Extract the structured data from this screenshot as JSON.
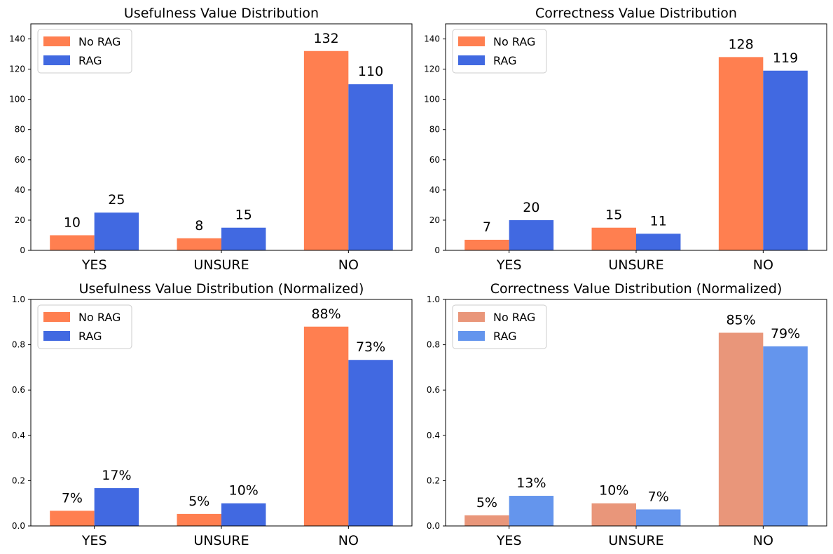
{
  "chart_data": [
    {
      "type": "bar",
      "title": "Usefulness Value Distribution",
      "categories": [
        "YES",
        "UNSURE",
        "NO"
      ],
      "series": [
        {
          "name": "No RAG",
          "values": [
            10,
            8,
            132
          ],
          "color": "#ff7f50"
        },
        {
          "name": "RAG",
          "values": [
            25,
            15,
            110
          ],
          "color": "#4169e1"
        }
      ],
      "data_labels": [
        [
          "10",
          "8",
          "132"
        ],
        [
          "25",
          "15",
          "110"
        ]
      ],
      "ylim": [
        0,
        150
      ],
      "yticks": [
        0,
        20,
        40,
        60,
        80,
        100,
        120,
        140
      ],
      "ytick_labels": [
        "0",
        "20",
        "40",
        "60",
        "80",
        "100",
        "120",
        "140"
      ],
      "xlabel": "",
      "ylabel": "",
      "grid": false,
      "legend": "top-left"
    },
    {
      "type": "bar",
      "title": "Correctness Value Distribution",
      "categories": [
        "YES",
        "UNSURE",
        "NO"
      ],
      "series": [
        {
          "name": "No RAG",
          "values": [
            7,
            15,
            128
          ],
          "color": "#ff7f50"
        },
        {
          "name": "RAG",
          "values": [
            20,
            11,
            119
          ],
          "color": "#4169e1"
        }
      ],
      "data_labels": [
        [
          "7",
          "15",
          "128"
        ],
        [
          "20",
          "11",
          "119"
        ]
      ],
      "ylim": [
        0,
        150
      ],
      "yticks": [
        0,
        20,
        40,
        60,
        80,
        100,
        120,
        140
      ],
      "ytick_labels": [
        "0",
        "20",
        "40",
        "60",
        "80",
        "100",
        "120",
        "140"
      ],
      "xlabel": "",
      "ylabel": "",
      "grid": false,
      "legend": "top-left"
    },
    {
      "type": "bar",
      "title": "Usefulness Value Distribution (Normalized)",
      "categories": [
        "YES",
        "UNSURE",
        "NO"
      ],
      "series": [
        {
          "name": "No RAG",
          "values": [
            0.067,
            0.053,
            0.88
          ],
          "color": "#ff7f50"
        },
        {
          "name": "RAG",
          "values": [
            0.167,
            0.1,
            0.733
          ],
          "color": "#4169e1"
        }
      ],
      "data_labels": [
        [
          "7%",
          "5%",
          "88%"
        ],
        [
          "17%",
          "10%",
          "73%"
        ]
      ],
      "ylim": [
        0,
        1.0
      ],
      "yticks": [
        0,
        0.2,
        0.4,
        0.6,
        0.8,
        1.0
      ],
      "ytick_labels": [
        "0.0",
        "0.2",
        "0.4",
        "0.6",
        "0.8",
        "1.0"
      ],
      "xlabel": "",
      "ylabel": "",
      "grid": false,
      "legend": "top-left"
    },
    {
      "type": "bar",
      "title": "Correctness Value Distribution (Normalized)",
      "categories": [
        "YES",
        "UNSURE",
        "NO"
      ],
      "series": [
        {
          "name": "No RAG",
          "values": [
            0.047,
            0.1,
            0.853
          ],
          "color": "#e9967a"
        },
        {
          "name": "RAG",
          "values": [
            0.133,
            0.073,
            0.793
          ],
          "color": "#6495ed"
        }
      ],
      "data_labels": [
        [
          "5%",
          "10%",
          "85%"
        ],
        [
          "13%",
          "7%",
          "79%"
        ]
      ],
      "ylim": [
        0,
        1.0
      ],
      "yticks": [
        0,
        0.2,
        0.4,
        0.6,
        0.8,
        1.0
      ],
      "ytick_labels": [
        "0.0",
        "0.2",
        "0.4",
        "0.6",
        "0.8",
        "1.0"
      ],
      "xlabel": "",
      "ylabel": "",
      "grid": false,
      "legend": "top-left"
    }
  ]
}
